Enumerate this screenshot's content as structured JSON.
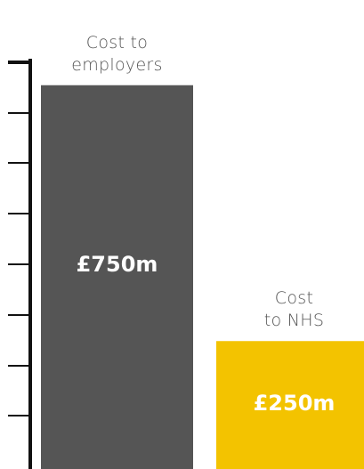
{
  "chart_data": {
    "type": "bar",
    "categories": [
      "Cost to\nemployers",
      "Cost\nto NHS"
    ],
    "values": [
      750,
      250
    ],
    "value_labels": [
      "£750m",
      "£250m"
    ],
    "colors": [
      "#555555",
      "#f3c300"
    ],
    "axis_color": "#111111",
    "ylim": [
      0,
      800
    ],
    "grid": false,
    "title": "",
    "xlabel": "",
    "ylabel": ""
  }
}
